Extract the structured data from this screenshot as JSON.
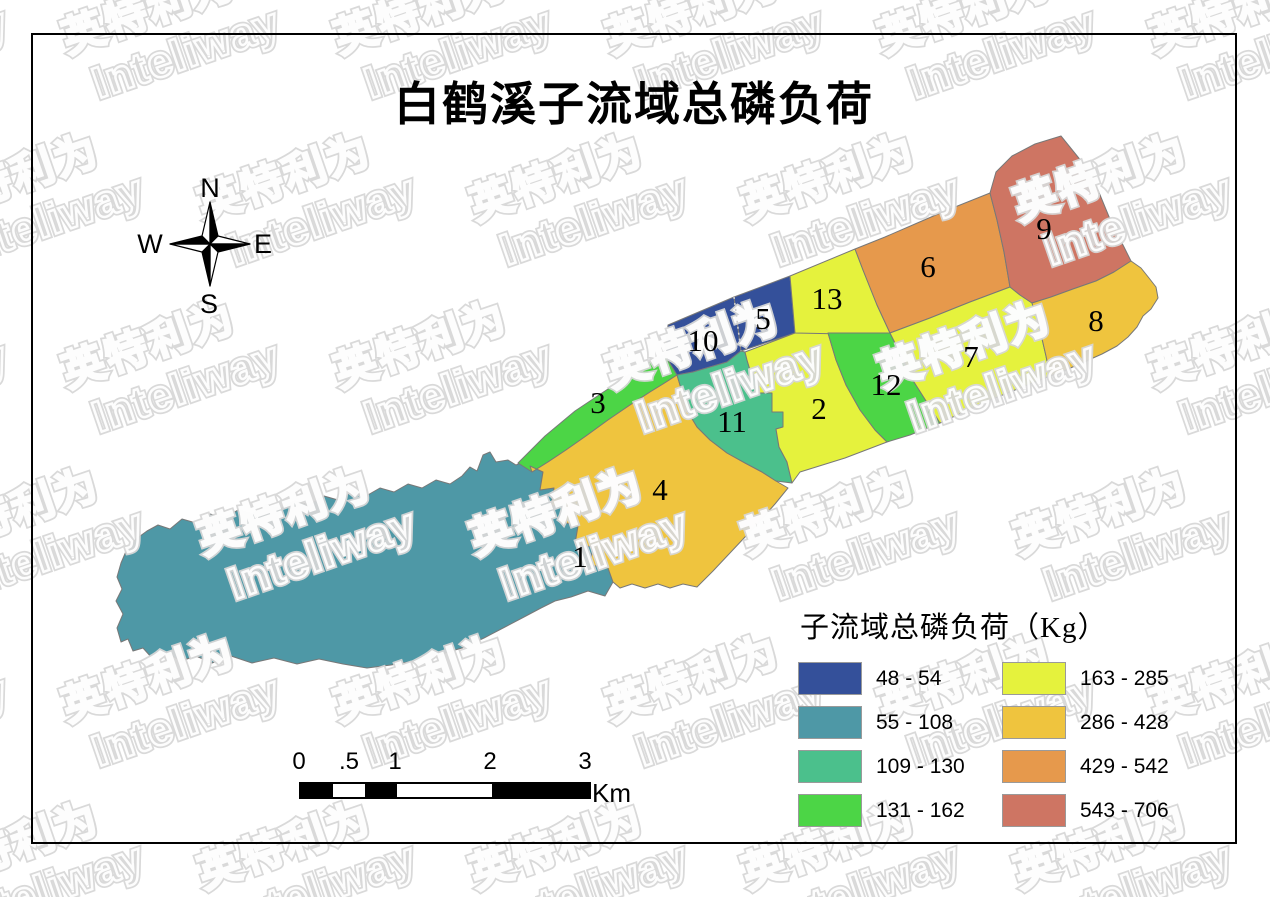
{
  "title": "白鹤溪子流域总磷负荷",
  "watermark": {
    "cjk": "英特利为",
    "latin": "Inteliway"
  },
  "compass": {
    "north": "N",
    "south": "S",
    "east": "E",
    "west": "W"
  },
  "legend": {
    "title": "子流域总磷负荷（Kg）",
    "classes": [
      {
        "range": "48 - 54",
        "color": "#34509A"
      },
      {
        "range": "55 - 108",
        "color": "#4E98A6"
      },
      {
        "range": "109 - 130",
        "color": "#4BC08C"
      },
      {
        "range": "131 - 162",
        "color": "#4CD546"
      },
      {
        "range": "163 - 285",
        "color": "#E5F23D"
      },
      {
        "range": "286 - 428",
        "color": "#EFC43E"
      },
      {
        "range": "429 - 542",
        "color": "#E6994C"
      },
      {
        "range": "543 - 706",
        "color": "#CE7563"
      }
    ]
  },
  "scalebar": {
    "ticks": [
      "0",
      ".5",
      "1",
      "2",
      "3"
    ],
    "unit": "Km"
  },
  "map": {
    "regions": [
      {
        "id": "1",
        "class_index": 1
      },
      {
        "id": "2",
        "class_index": 4
      },
      {
        "id": "3",
        "class_index": 3
      },
      {
        "id": "4",
        "class_index": 5
      },
      {
        "id": "5",
        "class_index": 0
      },
      {
        "id": "6",
        "class_index": 6
      },
      {
        "id": "7",
        "class_index": 4
      },
      {
        "id": "8",
        "class_index": 5
      },
      {
        "id": "9",
        "class_index": 7
      },
      {
        "id": "10",
        "class_index": 0
      },
      {
        "id": "11",
        "class_index": 2
      },
      {
        "id": "12",
        "class_index": 3
      },
      {
        "id": "13",
        "class_index": 4
      }
    ]
  }
}
